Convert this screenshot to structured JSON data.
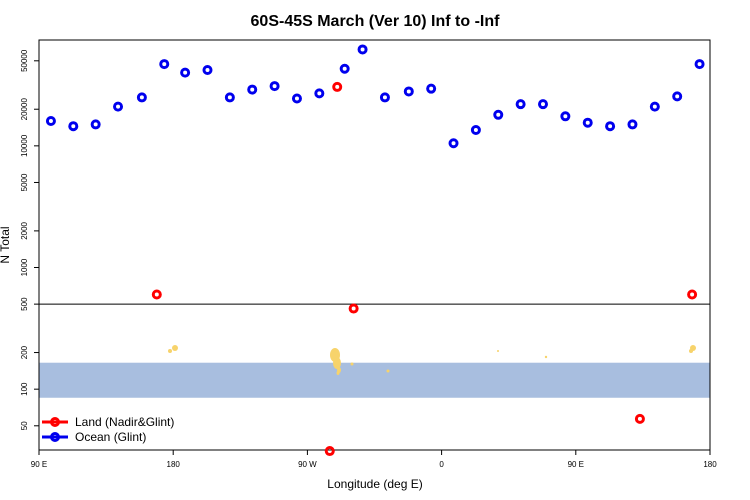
{
  "chart_data": {
    "type": "scatter",
    "title": "60S-45S March (Ver 10)   Inf to -Inf",
    "xlabel": "Longitude (deg E)",
    "ylabel": "N Total",
    "y_scale": "log",
    "y_ticks": [
      {
        "value": 50,
        "label": "50"
      },
      {
        "value": 100,
        "label": "100"
      },
      {
        "value": 200,
        "label": "200"
      },
      {
        "value": 500,
        "label": "500"
      },
      {
        "value": 1000,
        "label": "1000"
      },
      {
        "value": 2000,
        "label": "2000"
      },
      {
        "value": 5000,
        "label": "5000"
      },
      {
        "value": 10000,
        "label": "10000"
      },
      {
        "value": 20000,
        "label": "20000"
      },
      {
        "value": 50000,
        "label": "50000"
      }
    ],
    "x_ticks": [
      {
        "value": 90,
        "label": "90 E"
      },
      {
        "value": 180,
        "label": "180"
      },
      {
        "value": 270,
        "label": "90 W"
      },
      {
        "value": 360,
        "label": "0"
      },
      {
        "value": 450,
        "label": "90 E"
      },
      {
        "value": 540,
        "label": "180"
      }
    ],
    "xlim": [
      90,
      540
    ],
    "reference_line_y": 500,
    "map_band_y": [
      85,
      165
    ],
    "map_band_color": "#a8bedf",
    "land_color": "#f7d36b",
    "series": [
      {
        "name": "Land (Nadir&Glint)",
        "color": "#ff0000",
        "points": [
          {
            "x": 169,
            "y": 600
          },
          {
            "x": 285,
            "y": 31
          },
          {
            "x": 290,
            "y": 30500
          },
          {
            "x": 301,
            "y": 460
          },
          {
            "x": 493,
            "y": 57
          },
          {
            "x": 528,
            "y": 600
          }
        ]
      },
      {
        "name": "Ocean (Glint)",
        "color": "#0000ee",
        "points": [
          {
            "x": 98,
            "y": 16000
          },
          {
            "x": 113,
            "y": 14500
          },
          {
            "x": 128,
            "y": 15000
          },
          {
            "x": 143,
            "y": 21000
          },
          {
            "x": 159,
            "y": 25000
          },
          {
            "x": 174,
            "y": 47000
          },
          {
            "x": 188,
            "y": 40000
          },
          {
            "x": 203,
            "y": 42000
          },
          {
            "x": 218,
            "y": 25000
          },
          {
            "x": 233,
            "y": 29000
          },
          {
            "x": 248,
            "y": 31000
          },
          {
            "x": 263,
            "y": 24500
          },
          {
            "x": 278,
            "y": 27000
          },
          {
            "x": 295,
            "y": 43000
          },
          {
            "x": 307,
            "y": 62000
          },
          {
            "x": 322,
            "y": 25000
          },
          {
            "x": 338,
            "y": 28000
          },
          {
            "x": 353,
            "y": 29500
          },
          {
            "x": 368,
            "y": 10500
          },
          {
            "x": 383,
            "y": 13500
          },
          {
            "x": 398,
            "y": 18000
          },
          {
            "x": 413,
            "y": 22000
          },
          {
            "x": 428,
            "y": 22000
          },
          {
            "x": 443,
            "y": 17500
          },
          {
            "x": 458,
            "y": 15500
          },
          {
            "x": 473,
            "y": 14500
          },
          {
            "x": 488,
            "y": 15000
          },
          {
            "x": 503,
            "y": 21000
          },
          {
            "x": 518,
            "y": 25500
          },
          {
            "x": 533,
            "y": 47000
          }
        ]
      }
    ],
    "legend": {
      "position": "bottom-left",
      "entries": [
        "Land (Nadir&Glint)",
        "Ocean (Glint)"
      ]
    }
  }
}
